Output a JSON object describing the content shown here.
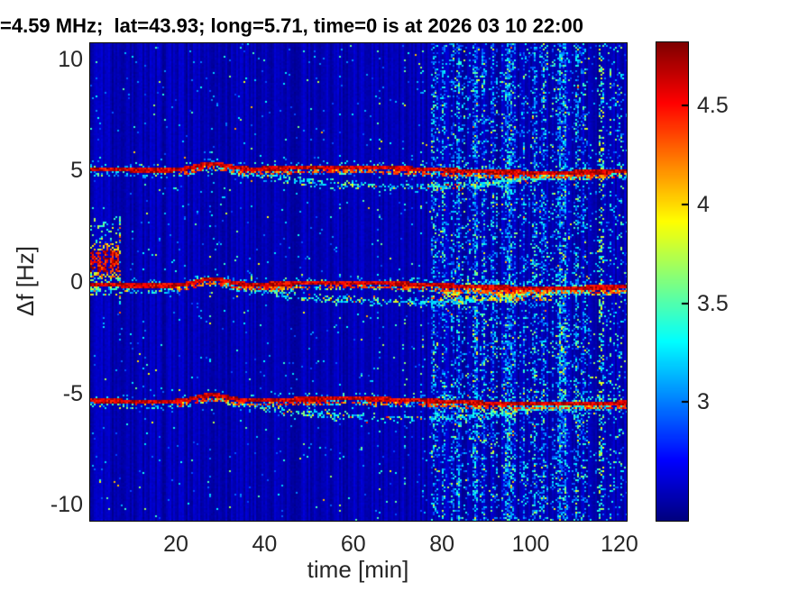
{
  "chart_data": {
    "type": "heatmap",
    "title": "=4.59 MHz;  lat=43.93; long=5.71, time=0 is at 2026 03 10 22:00",
    "xlabel": "time [min]",
    "ylabel": "Δf [Hz]",
    "xlim": [
      0.69,
      121.64
    ],
    "ylim": [
      -10.71,
      10.71
    ],
    "xticks": [
      20,
      40,
      60,
      80,
      100,
      120
    ],
    "yticks": [
      10,
      5,
      0,
      -5,
      -10
    ],
    "colormap": "jet",
    "grid": false,
    "background_color": "#ffffff",
    "colorbar": {
      "position": "right",
      "range": [
        2.4,
        4.82
      ],
      "ticks": [
        3,
        3.5,
        4,
        4.5
      ]
    },
    "features": {
      "background_level_range": [
        2.42,
        2.58
      ],
      "doppler_bands": [
        {
          "center_hz": 5.08,
          "strength": 0.9
        },
        {
          "center_hz": -0.1,
          "strength": 1.0
        },
        {
          "center_hz": -5.3,
          "strength": 0.9
        }
      ],
      "band_line_level": [
        4.4,
        4.85
      ],
      "secondary_line_offset_hz": -0.19,
      "band_wobble": {
        "sine_amp_hz": 0.07,
        "sine_period_min": 85,
        "sine_phase_min": 40,
        "bump_t_min": 28,
        "bump_width_min": 5,
        "bump_amp_hz": 0.28,
        "late_drift_hz": -0.1
      },
      "secondary_trace": {
        "start_min": 32,
        "span_min": 72,
        "base_offset_hz": -0.12,
        "max_extra_offset_hz": -0.72
      },
      "startup_blob": {
        "t_range_min": [
          0.69,
          7.05
        ],
        "core_f_range_hz": [
          0.45,
          1.45
        ],
        "fringe_f_range_hz": [
          0.2,
          1.7
        ],
        "halo_above_to_hz": 2.9,
        "halo_below_to_hz": -0.6,
        "core_level": [
          4.25,
          4.85
        ]
      },
      "dense_noise_interval_min": [
        77.3,
        113.7
      ],
      "dense_cluster_end_min": 104.5,
      "post_noise_interval_min": [
        113.7,
        121.64
      ],
      "streaks": [
        {
          "t": 7.35,
          "half": 0.3,
          "f0": -1.6,
          "f1": 2.95,
          "p": 0.55,
          "v0": 3.1,
          "dv": 1.3
        },
        {
          "t": 7.35,
          "half": 0.25,
          "f0": -2.7,
          "f1": -1.6,
          "p": 0.18,
          "v0": 3.0,
          "dv": 0.7
        },
        {
          "t": 27.8,
          "half": 0.35,
          "f0": -10.8,
          "f1": 10.8,
          "p": 0.05,
          "v0": 2.95,
          "dv": 1.0
        },
        {
          "t": 44.5,
          "half": 0.3,
          "f0": -10.8,
          "f1": 10.8,
          "p": 0.02,
          "v0": 2.9,
          "dv": 0.8
        },
        {
          "t": 56.8,
          "half": 0.3,
          "f0": -10.8,
          "f1": 10.8,
          "p": 0.035,
          "v0": 2.9,
          "dv": 0.9
        },
        {
          "t": 65.7,
          "half": 0.3,
          "f0": -10.8,
          "f1": 10.8,
          "p": 0.045,
          "v0": 2.9,
          "dv": 0.9
        },
        {
          "t": 71.3,
          "half": 0.3,
          "f0": -10.8,
          "f1": 10.8,
          "p": 0.03,
          "v0": 2.9,
          "dv": 0.8
        },
        {
          "t": 75.2,
          "half": 0.4,
          "f0": -10.8,
          "f1": 10.8,
          "p": 0.05,
          "v0": 2.9,
          "dv": 0.9
        },
        {
          "t": 115.7,
          "half": 0.55,
          "f0": -10.8,
          "f1": 10.8,
          "p": 0.3,
          "v0": 3.0,
          "dv": 0.95
        },
        {
          "t": 117.8,
          "half": 0.35,
          "f0": -10.8,
          "f1": 10.8,
          "p": 0.16,
          "v0": 3.0,
          "dv": 0.85
        },
        {
          "t": 119.9,
          "half": 0.35,
          "f0": -10.8,
          "f1": 10.8,
          "p": 0.12,
          "v0": 3.0,
          "dv": 0.8
        }
      ]
    }
  }
}
